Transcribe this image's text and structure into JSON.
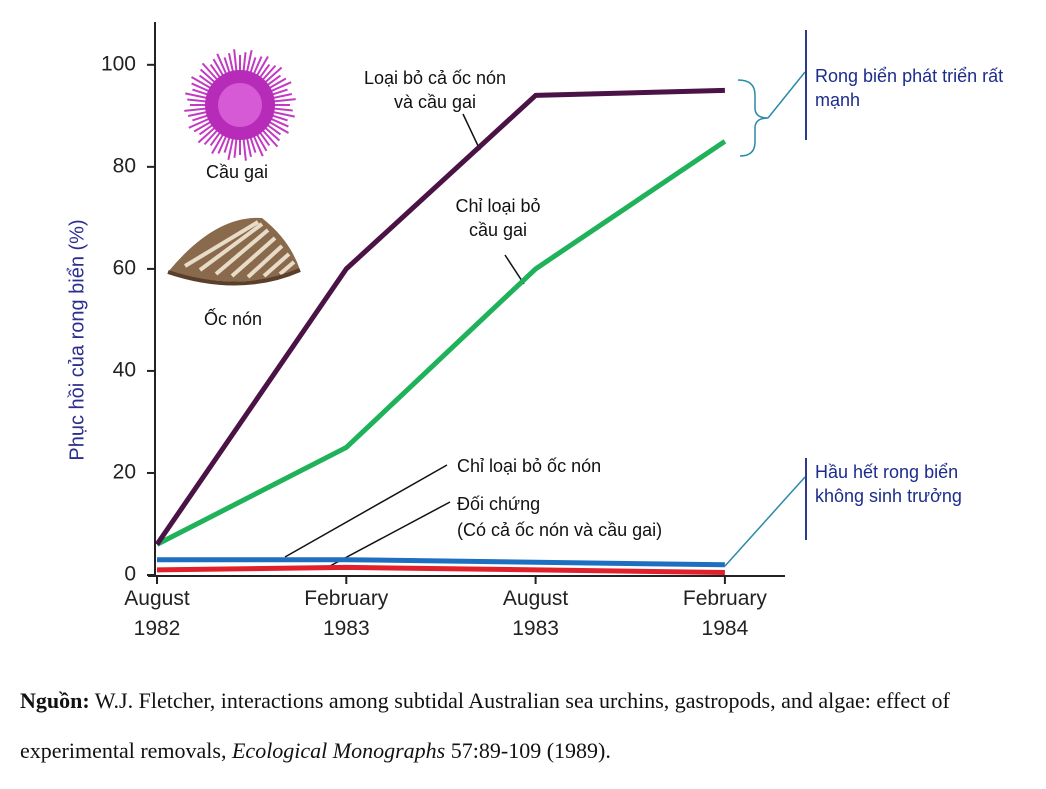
{
  "chart_data": {
    "type": "line",
    "y_label": "Phục hồi của rong biển (%)",
    "categories": [
      "August 1982",
      "February 1983",
      "August 1983",
      "February 1984"
    ],
    "series": [
      {
        "name": "Loại bỏ cả ốc nón và cầu gai",
        "color": "#4b1246",
        "values": [
          6,
          60,
          94,
          95
        ]
      },
      {
        "name": "Chỉ loại bỏ cầu gai",
        "color": "#1fb25a",
        "values": [
          6,
          25,
          60,
          85
        ]
      },
      {
        "name": "Chỉ loại bỏ ốc nón",
        "color": "#1f6fc0",
        "values": [
          3,
          3,
          2.5,
          2
        ]
      },
      {
        "name": "Đối chứng",
        "note": "(Có cả ốc nón và cầu gai)",
        "color": "#e0202a",
        "values": [
          1,
          1.5,
          1,
          0.5
        ]
      }
    ],
    "ylim": [
      0,
      108
    ],
    "yticks": [
      0,
      20,
      40,
      60,
      80,
      100
    ],
    "annotations": {
      "high": "Rong biển phát triển rất mạnh",
      "low": "Hầu hết rong biển không sinh trưởng"
    },
    "illustrations": {
      "urchin": "Cầu gai",
      "limpet": "Ốc nón"
    }
  },
  "source": {
    "label": "Nguồn:",
    "text": "W.J. Fletcher, interactions among subtidal Australian sea urchins, gastropods, and algae: effect of experimental removals,",
    "journal": "Ecological Monographs",
    "ref": "57:89-109 (1989)."
  }
}
